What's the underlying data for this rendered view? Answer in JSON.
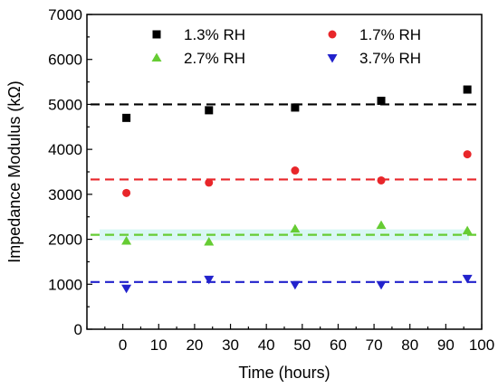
{
  "chart_data": {
    "type": "scatter",
    "xlabel": "Time (hours)",
    "ylabel": "Impedance Modulus (kΩ)",
    "xlim": [
      -10,
      100
    ],
    "ylim": [
      0,
      7000
    ],
    "xticks": [
      0,
      10,
      20,
      30,
      40,
      50,
      60,
      70,
      80,
      90,
      100
    ],
    "yticks": [
      0,
      1000,
      2000,
      3000,
      4000,
      5000,
      6000,
      7000
    ],
    "legend_position": "top",
    "series": [
      {
        "name": "1.3% RH",
        "marker": "square",
        "color": "#000000",
        "x": [
          1,
          24,
          48,
          72,
          96
        ],
        "y": [
          4700,
          4870,
          4930,
          5080,
          5330
        ],
        "reference": 5000
      },
      {
        "name": "1.7% RH",
        "marker": "circle",
        "color": "#e8262a",
        "x": [
          1,
          24,
          48,
          72,
          96
        ],
        "y": [
          3030,
          3260,
          3530,
          3310,
          3890
        ],
        "reference": 3330
      },
      {
        "name": "2.7% RH",
        "marker": "triangle-up",
        "color": "#66cc33",
        "x": [
          1,
          24,
          48,
          72,
          96
        ],
        "y": [
          1960,
          1940,
          2230,
          2310,
          2190
        ],
        "reference": 2100
      },
      {
        "name": "3.7% RH",
        "marker": "triangle-down",
        "color": "#2222cc",
        "x": [
          1,
          24,
          48,
          72,
          96
        ],
        "y": [
          910,
          1110,
          990,
          990,
          1130
        ],
        "reference": 1050
      }
    ]
  }
}
